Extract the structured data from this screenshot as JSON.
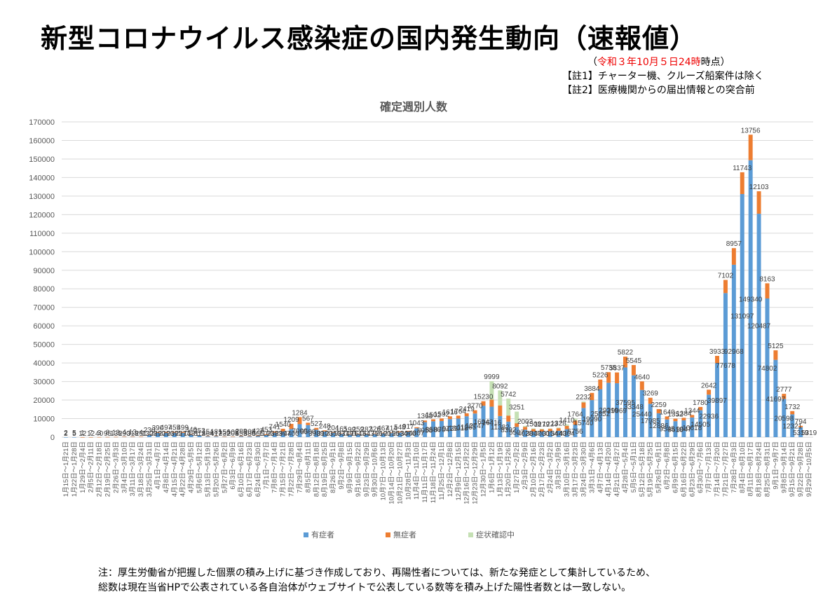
{
  "header": {
    "title": "新型コロナウイルス感染症の国内発生動向（速報値）",
    "asof_open": "（",
    "asof_red": "令和３年10月５日24時",
    "asof_rest": "時点）",
    "note1": "【註1】チャーター機、クルーズ船案件は除く",
    "note2": "【註2】医療機関からの届出情報との突合前"
  },
  "footer": {
    "line1": "注：厚生労働省が把握した個票の積み上げに基づき作成しており、再陽性者については、新たな発症として集計しているため、",
    "line2": "総数は現在当省HPで公表されている各自治体がウェブサイトで公表している数等を積み上げた陽性者数とは一致しない。"
  },
  "colors": {
    "symptomatic": "#5b9bd5",
    "asymptomatic": "#ed7d31",
    "confirming": "#c5e0b4",
    "grid": "#d9d9d9",
    "axis_text": "#595959"
  },
  "chart_data": {
    "type": "bar",
    "stacked": true,
    "title": "確定週別人数",
    "xlabel": "",
    "ylabel": "",
    "ylim": [
      0,
      170000
    ],
    "yticks": [
      0,
      10000,
      20000,
      30000,
      40000,
      50000,
      60000,
      70000,
      80000,
      90000,
      100000,
      110000,
      120000,
      130000,
      140000,
      150000,
      160000,
      170000
    ],
    "grid": true,
    "legend": "bottom",
    "categories": [
      "1月15日～1月21日",
      "1月22日～1月28日",
      "1月29日～2月4日",
      "2月5日～2月11日",
      "2月12日～2月18日",
      "2月19日～2月25日",
      "2月26日～3月3日",
      "3月4日～3月10日",
      "3月11日～3月17日",
      "3月18日～3月24日",
      "3月25日～3月31日",
      "4月1日～4月7日",
      "4月8日～4月14日",
      "4月15日～4月21日",
      "4月22日～4月28日",
      "4月29日～5月5日",
      "5月6日～5月12日",
      "5月13日～5月19日",
      "5月20日～5月26日",
      "5月27日～6月2日",
      "6月3日～6月9日",
      "6月10日～6月16日",
      "6月17日～6月23日",
      "6月24日～6月30日",
      "7月1日～7月7日",
      "7月8日～7月14日",
      "7月15日～7月21日",
      "7月22日～7月28日",
      "7月29日～8月4日",
      "8月5日～8月11日",
      "8月12日～8月18日",
      "8月19日～8月25日",
      "8月26日～9月1日",
      "9月2日～9月8日",
      "9月9日～9月15日",
      "9月16日～9月22日",
      "9月23日～9月29日",
      "9月30日～10月6日",
      "10月7日～10月13日",
      "10月14日～10月20日",
      "10月21日～10月27日",
      "10月28日～11月3日",
      "11月4日～11月10日",
      "11月11日～11月17日",
      "11月18日～11月24日",
      "11月25日～12月1日",
      "12月2日～12月8日",
      "12月9日～12月15日",
      "12月16日～12月22日",
      "12月23日～12月29日",
      "12月30日～1月5日",
      "1月6日～1月12日",
      "1月13日～1月19日",
      "1月20日～1月26日",
      "1月27日～2月2日",
      "2月3日～2月9日",
      "2月10日～2月16日",
      "2月17日～2月23日",
      "2月24日～3月2日",
      "3月3日～3月9日",
      "3月10日～3月16日",
      "3月17日～3月23日",
      "3月24日～3月30日",
      "3月31日～4月6日",
      "4月7日～4月13日",
      "4月14日～4月20日",
      "4月21日～4月27日",
      "4月28日～5月4日",
      "5月5日～5月11日",
      "5月12日～5月18日",
      "5月19日～5月25日",
      "5月26日～6月1日",
      "6月2日～6月8日",
      "6月9日～6月15日",
      "6月16日～6月22日",
      "6月23日～6月29日",
      "6月30日～7月6日",
      "7月7日～7月13日",
      "7月14日～7月20日",
      "7月21日～7月27日",
      "7月28日～8月3日",
      "8月4日～8月10日",
      "8月11日～8月17日",
      "8月18日～8月24日",
      "8月25日～8月31日",
      "9月1日～9月7日",
      "9月8日～9月14日",
      "9月15日～9月21日",
      "9月22日～9月28日",
      "9月29日～10月5日"
    ],
    "series": [
      {
        "name": "有症者",
        "values": [
          2,
          5,
          12,
          12,
          40,
          95,
          135,
          290,
          318,
          251,
          1308,
          2290,
          2296,
          2395,
          2274,
          1381,
          812,
          464,
          417,
          232,
          203,
          455,
          380,
          566,
          1166,
          2383,
          2997,
          4400,
          7000,
          6500,
          3989,
          3100,
          2350,
          1831,
          1491,
          1643,
          1643,
          1756,
          2100,
          2156,
          2534,
          3000,
          4807,
          8058,
          8586,
          8704,
          9729,
          10018,
          11265,
          12747,
          16943,
          16416,
          11382,
          8392,
          5507,
          4028,
          3047,
          3000,
          3154,
          3440,
          4304,
          6756,
          15740,
          19990,
          25852,
          29319,
          29069,
          37595,
          33348,
          25440,
          17985,
          12886,
          9545,
          8618,
          9047,
          10618,
          14505,
          22936,
          39897,
          77678,
          92968,
          131097,
          149340,
          120487,
          74802,
          41697,
          20598,
          12321,
          5319,
          0
        ]
      },
      {
        "name": "無症者",
        "values": [
          0,
          0,
          1,
          7,
          3,
          8,
          13,
          4,
          13,
          4,
          230,
          390,
          497,
          455,
          499,
          346,
          252,
          154,
          181,
          156,
          108,
          288,
          208,
          427,
          453,
          741,
          1540,
          2760,
          3800,
          1284,
          1000,
          567,
          327,
          248,
          204,
          165,
          199,
          259,
          287,
          326,
          467,
          414,
          548,
          917,
          1043,
          1368,
          1502,
          1592,
          1616,
          1764,
          2419,
          3770,
          5742,
          3251,
          2003,
          1508,
          1279,
          1223,
          1328,
          1410,
          1764,
          2232,
          2983,
          3884,
          5226,
          5735,
          5837,
          5822,
          5545,
          4640,
          3269,
          2259,
          1640,
          1352,
          1384,
          1344,
          1780,
          2642,
          3933,
          7102,
          8957,
          11743,
          13756,
          12103,
          8163,
          5125,
          2777,
          1732,
          794,
          0
        ]
      },
      {
        "name": "症状確認中",
        "values": [
          0,
          0,
          0,
          0,
          0,
          0,
          0,
          0,
          0,
          0,
          0,
          0,
          0,
          0,
          0,
          0,
          0,
          0,
          0,
          0,
          0,
          0,
          0,
          0,
          0,
          0,
          0,
          0,
          0,
          0,
          0,
          0,
          0,
          0,
          0,
          0,
          0,
          0,
          0,
          0,
          0,
          0,
          0,
          0,
          0,
          0,
          0,
          0,
          0,
          0,
          0,
          9999,
          8092,
          9150,
          6253,
          500,
          400,
          300,
          200,
          300,
          800,
          1000,
          500,
          0,
          0,
          0,
          0,
          0,
          0,
          0,
          0,
          0,
          0,
          0,
          0,
          0,
          0,
          0,
          0,
          0,
          0,
          0,
          0,
          0,
          0,
          0,
          0,
          0,
          0,
          0
        ]
      }
    ],
    "data_labels_top": [
      "2",
      "5",
      "1",
      "7",
      "3",
      "8",
      "13",
      "4",
      "13",
      "4",
      "230",
      "390",
      "497",
      "455",
      "499",
      "346",
      "252",
      "154",
      "181",
      "156",
      "108",
      "288",
      "208",
      "427",
      "453",
      "741",
      "1540",
      "1209",
      "1284",
      "567",
      "527",
      "248",
      "204",
      "165",
      "199",
      "259",
      "287",
      "326",
      "467",
      "414",
      "548",
      "917",
      "1043",
      "1368",
      "1502",
      "1592",
      "1616",
      "1764",
      "2419",
      "3770",
      "15230",
      "9999",
      "8092",
      "5742",
      "3251",
      "2003",
      "1508",
      "1279",
      "1223",
      "1328",
      "1410",
      "1764",
      "2232",
      "3884",
      "5226",
      "5735",
      "5837",
      "5822",
      "5545",
      "4640",
      "3269",
      "2259",
      "1640",
      "1352",
      "1384",
      "1344",
      "1780",
      "2642",
      "3933",
      "7102",
      "8957",
      "11743",
      "13756",
      "12103",
      "8163",
      "5125",
      "2777",
      "1732",
      "794",
      "5319"
    ]
  }
}
